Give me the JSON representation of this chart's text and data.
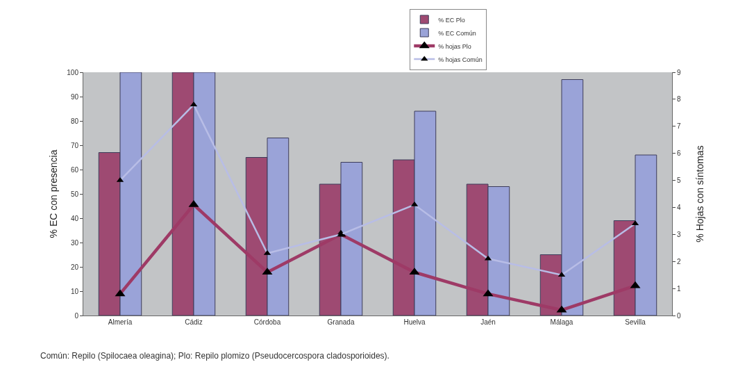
{
  "chart_data": {
    "type": "bar",
    "xlabel": null,
    "ylabel": "% EC con presencia",
    "y2label": "% Hojas con síntomas",
    "categories": [
      "Almería",
      "Cádiz",
      "Córdoba",
      "Granada",
      "Huelva",
      "Jaén",
      "Málaga",
      "Sevilla"
    ],
    "series": [
      {
        "name": "% EC Plo",
        "color": "#9e4a72",
        "values": [
          67,
          100,
          65,
          54,
          64,
          54,
          25,
          39
        ]
      },
      {
        "name": "% EC Común",
        "color": "#9aa3d8",
        "values": [
          100,
          100,
          73,
          63,
          84,
          53,
          97,
          66
        ]
      },
      {
        "name": "% hojas Plo",
        "type": "line",
        "axis": "y2",
        "color": "#9e3a66",
        "marker": "triangle",
        "values": [
          0.8,
          4.1,
          1.6,
          3.0,
          1.6,
          0.8,
          0.2,
          1.1
        ]
      },
      {
        "name": "% hojas Común",
        "type": "line",
        "axis": "y2",
        "color": "#b8bde6",
        "marker": "triangle",
        "values": [
          5.0,
          7.8,
          2.3,
          3.0,
          4.1,
          2.1,
          1.5,
          3.4
        ]
      }
    ],
    "ylim": [
      0,
      100
    ],
    "yticks": [
      0,
      10,
      20,
      30,
      40,
      50,
      60,
      70,
      80,
      90,
      100
    ],
    "y2lim": [
      0,
      9
    ],
    "y2ticks": [
      0,
      1,
      2,
      3,
      4,
      5,
      6,
      7,
      8,
      9
    ],
    "grid": false,
    "legend": "top",
    "annotations": [
      "Común: Repilo (Spilocaea oleagina); Plo: Repilo plomizo (Pseudocercospora cladosporioides)."
    ]
  }
}
